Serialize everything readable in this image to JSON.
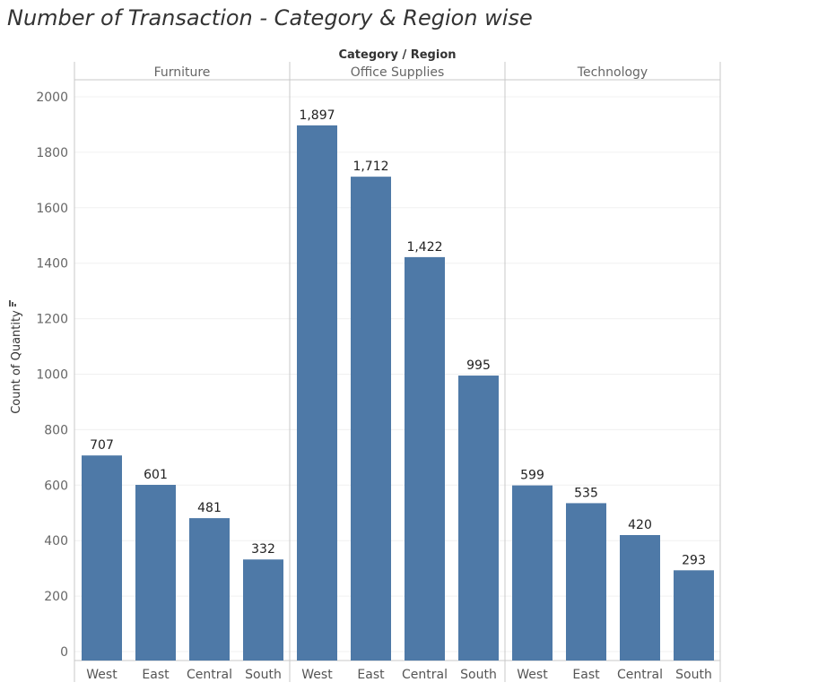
{
  "title": "Number of Transaction - Category & Region wise",
  "chart_data": {
    "type": "bar",
    "title": "Number of Transaction - Category & Region wise",
    "header_title": "Category / Region",
    "ylabel": "Count of Quantity",
    "ylim": [
      0,
      2050
    ],
    "yticks": [
      0,
      200,
      400,
      600,
      800,
      1000,
      1200,
      1400,
      1600,
      1800,
      2000
    ],
    "grid": true,
    "bar_color": "#4e79a7",
    "groups": [
      {
        "category": "Furniture",
        "regions": [
          "West",
          "East",
          "Central",
          "South"
        ],
        "values": [
          707,
          601,
          481,
          332
        ],
        "labels": [
          "707",
          "601",
          "481",
          "332"
        ]
      },
      {
        "category": "Office Supplies",
        "regions": [
          "West",
          "East",
          "Central",
          "South"
        ],
        "values": [
          1897,
          1712,
          1422,
          995
        ],
        "labels": [
          "1,897",
          "1,712",
          "1,422",
          "995"
        ]
      },
      {
        "category": "Technology",
        "regions": [
          "West",
          "East",
          "Central",
          "South"
        ],
        "values": [
          599,
          535,
          420,
          293
        ],
        "labels": [
          "599",
          "535",
          "420",
          "293"
        ]
      }
    ]
  }
}
